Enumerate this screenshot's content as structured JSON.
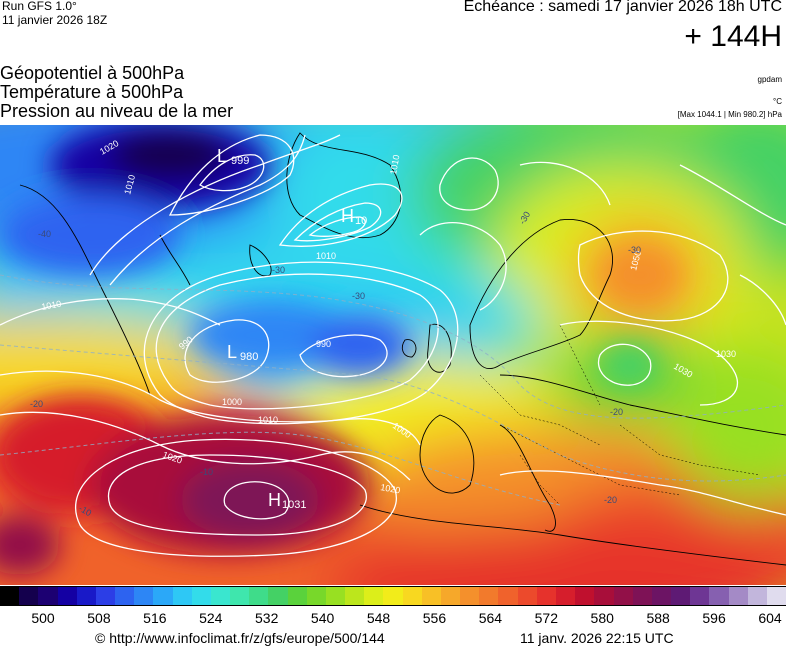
{
  "header": {
    "run_label": "Run GFS 1.0°",
    "run_date": "11 janvier 2026 18Z",
    "valid_time": "Echéance : samedi 17 janvier 2026 18h UTC",
    "lead_hours": "+ 144H"
  },
  "titles": {
    "line1": "Géopotentiel à 500hPa",
    "line2": "Température à 500hPa",
    "line3": "Pression au niveau de la mer"
  },
  "units": {
    "geopotential": "gpdam",
    "temperature": "°C",
    "pressure_range": "[Max 1044.1 | Min 980.2] hPa"
  },
  "pressure_centers": [
    {
      "type": "L",
      "value": "999"
    },
    {
      "type": "H",
      "value": "10"
    },
    {
      "type": "L",
      "value": "980"
    },
    {
      "type": "H",
      "value": "1031"
    }
  ],
  "isobar_labels": [
    "1020",
    "1010",
    "1010",
    "1010",
    "1000",
    "990",
    "990",
    "1010",
    "1000",
    "1020",
    "1020",
    "1050",
    "1030",
    "1030",
    "1010"
  ],
  "temperature_labels": [
    "-40",
    "-30",
    "-30",
    "-20",
    "-20",
    "-10",
    "-10",
    "-30",
    "-30",
    "-20"
  ],
  "colorbar": {
    "colors": [
      "#000000",
      "#14004d",
      "#1c0072",
      "#1400a3",
      "#1919c8",
      "#2c3ee6",
      "#2d63f0",
      "#2d86f5",
      "#2ba8f8",
      "#2ec8f5",
      "#33dcea",
      "#3ae6cf",
      "#3fe6ad",
      "#3fdc8a",
      "#44d165",
      "#5ad23c",
      "#78d82a",
      "#98e022",
      "#bce61c",
      "#dcee1a",
      "#f2ec1a",
      "#f8d820",
      "#f8c026",
      "#f6a82a",
      "#f4902c",
      "#f27a2c",
      "#f0622c",
      "#ec4a2c",
      "#e6322c",
      "#d61e2c",
      "#c0102e",
      "#a80e3a",
      "#921048",
      "#7e1256",
      "#6c1464",
      "#5e1a74",
      "#6e3694",
      "#8660b0",
      "#a48ac6",
      "#c2b6dc",
      "#e0dcee"
    ],
    "tick_labels": [
      "500",
      "508",
      "516",
      "524",
      "532",
      "540",
      "548",
      "556",
      "564",
      "572",
      "580",
      "588",
      "596",
      "604"
    ]
  },
  "footer": {
    "url": "© http://www.infoclimat.fr/z/gfs/europe/500/144",
    "generated": "11 janv. 2026 22:15 UTC"
  }
}
